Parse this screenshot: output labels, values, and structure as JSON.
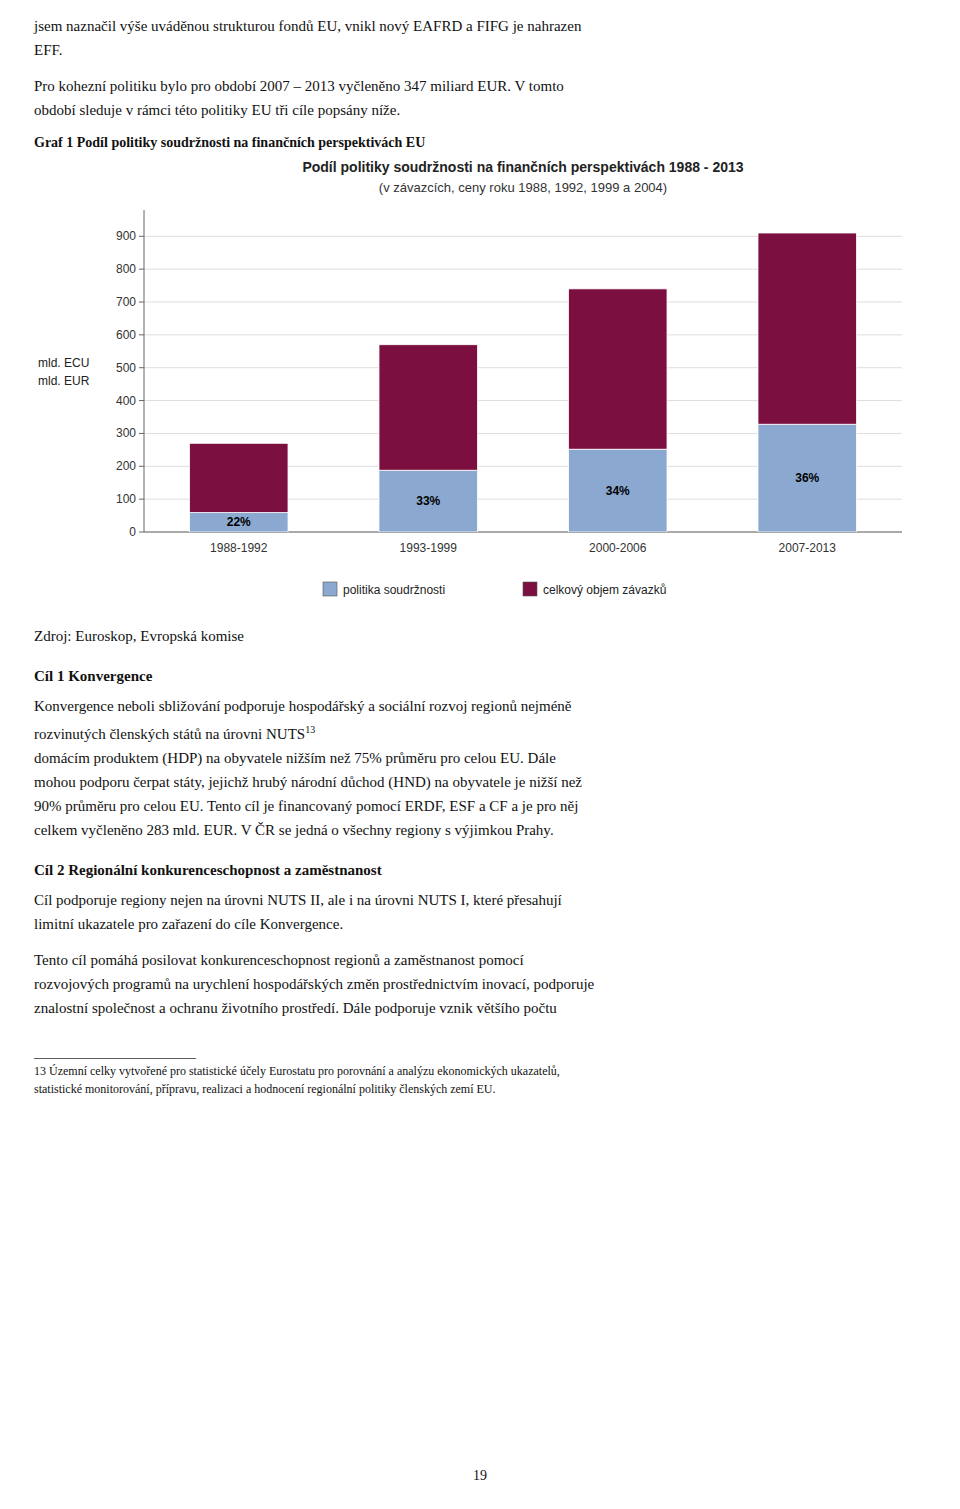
{
  "chart_data": {
    "type": "bar",
    "stacked": true,
    "title": "Podíl politiky soudržnosti na finančních perspektivách 1988 - 2013",
    "subtitle": "(v závazcích, ceny roku 1988, 1992, 1999 a 2004)",
    "y_label": "mld. ECU",
    "y_label_2": "mld. EUR",
    "categories": [
      "1988-1992",
      "1993-1999",
      "2000-2006",
      "2007-2013"
    ],
    "series": [
      {
        "name": "politika soudržnosti",
        "color": "#8BA8D0",
        "values": [
          59,
          188,
          252,
          328
        ]
      },
      {
        "name": "celkový objem závazků",
        "color": "#7B1040",
        "values": [
          211,
          382,
          488,
          582
        ]
      }
    ],
    "annotations": [
      "22%",
      "33%",
      "34%",
      "36%"
    ],
    "ylim": [
      0,
      980
    ],
    "yticks": [
      0,
      100,
      200,
      300,
      400,
      500,
      600,
      700,
      800,
      900
    ],
    "grid": true,
    "legend": "bottom"
  },
  "page": {
    "intro": [
      "jsem naznačil výše uváděnou strukturou fondů EU, vnikl nový EAFRD a FIFG je nahrazen",
      "EFF.",
      "Pro kohezní politiku bylo pro období 2007 – 2013 vyčleněno 347 miliard EUR.  V tomto",
      "období sleduje v rámci této politiky EU tři cíle popsány níže."
    ],
    "figure_label": "Graf 1 Podíl politiky soudržnosti na finančních perspektivách EU",
    "source": "Zdroj: Euroskop, Evropská komise",
    "goal1_heading": "Cíl 1 Konvergence",
    "goal1_first": "Konvergence neboli sbližování podporuje hospodářský a sociální rozvoj regionů nejméně",
    "goal1_ref_line": "rozvinutých členských států na úrovni NUTS",
    "goal1_footnote_ref": "13",
    "goal1_rest": [
      "domácím produktem (HDP) na obyvatele nižším než 75% průměru pro celou EU. Dále",
      "mohou podporu čerpat státy, jejichž hrubý národní důchod (HND) na obyvatele je nižší než",
      "90% průměru pro celou EU. Tento cíl je financovaný pomocí ERDF, ESF a CF a je pro něj",
      "celkem vyčleněno 283 mld. EUR. V ČR se jedná o všechny regiony s výjimkou Prahy."
    ],
    "goal2_heading": "Cíl 2 Regionální konkurenceschopnost a zaměstnanost",
    "goal2_para1": [
      "Cíl podporuje regiony nejen na úrovni NUTS II, ale i na úrovni NUTS I, které přesahují",
      "limitní ukazatele pro zařazení do cíle Konvergence."
    ],
    "goal2_para2": [
      "Tento cíl pomáhá posilovat  konkurenceschopnost  regionů  a  zaměstnanost  pomocí",
      "rozvojových programů na urychlení hospodářských změn prostřednictvím inovací, podporuje",
      "znalostní společnost a ochranu životního prostředí.  Dále podporuje vznik většího počtu"
    ],
    "footnote_rule": "___________________________",
    "footnotes": [
      "13 Územní celky vytvořené pro statistické účely Eurostatu pro porovnání a analýzu ekonomických ukazatelů,",
      "statistické monitorování, přípravu, realizaci a hodnocení regionální politiky členských zemí EU."
    ],
    "page_number": "19"
  }
}
